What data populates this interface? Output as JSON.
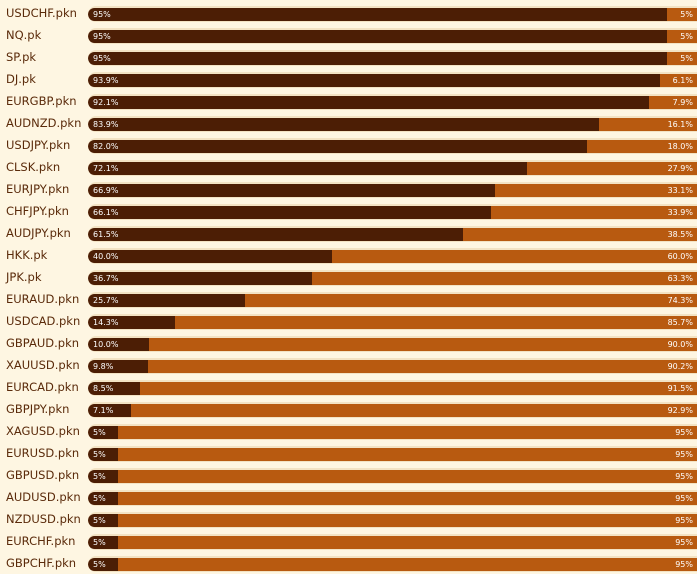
{
  "chart_data": {
    "type": "bar",
    "stacked": true,
    "orientation": "horizontal",
    "colors": {
      "long": "#4c1e05",
      "short": "#b85a10",
      "label": "#5a2a0a",
      "background": "#fef6e2"
    },
    "rows": [
      {
        "symbol": "USDCHF.pkn",
        "long": 95,
        "short": 5,
        "long_label": "95%",
        "short_label": "5%"
      },
      {
        "symbol": "NQ.pk",
        "long": 95,
        "short": 5,
        "long_label": "95%",
        "short_label": "5%"
      },
      {
        "symbol": "SP.pk",
        "long": 95,
        "short": 5,
        "long_label": "95%",
        "short_label": "5%"
      },
      {
        "symbol": "DJ.pk",
        "long": 93.9,
        "short": 6.1,
        "long_label": "93.9%",
        "short_label": "6.1%"
      },
      {
        "symbol": "EURGBP.pkn",
        "long": 92.1,
        "short": 7.9,
        "long_label": "92.1%",
        "short_label": "7.9%"
      },
      {
        "symbol": "AUDNZD.pkn",
        "long": 83.9,
        "short": 16.1,
        "long_label": "83.9%",
        "short_label": "16.1%"
      },
      {
        "symbol": "USDJPY.pkn",
        "long": 82.0,
        "short": 18.0,
        "long_label": "82.0%",
        "short_label": "18.0%"
      },
      {
        "symbol": "CLSK.pkn",
        "long": 72.1,
        "short": 27.9,
        "long_label": "72.1%",
        "short_label": "27.9%"
      },
      {
        "symbol": "EURJPY.pkn",
        "long": 66.9,
        "short": 33.1,
        "long_label": "66.9%",
        "short_label": "33.1%"
      },
      {
        "symbol": "CHFJPY.pkn",
        "long": 66.1,
        "short": 33.9,
        "long_label": "66.1%",
        "short_label": "33.9%"
      },
      {
        "symbol": "AUDJPY.pkn",
        "long": 61.5,
        "short": 38.5,
        "long_label": "61.5%",
        "short_label": "38.5%"
      },
      {
        "symbol": "HKK.pk",
        "long": 40.0,
        "short": 60.0,
        "long_label": "40.0%",
        "short_label": "60.0%"
      },
      {
        "symbol": "JPK.pk",
        "long": 36.7,
        "short": 63.3,
        "long_label": "36.7%",
        "short_label": "63.3%"
      },
      {
        "symbol": "EURAUD.pkn",
        "long": 25.7,
        "short": 74.3,
        "long_label": "25.7%",
        "short_label": "74.3%"
      },
      {
        "symbol": "USDCAD.pkn",
        "long": 14.3,
        "short": 85.7,
        "long_label": "14.3%",
        "short_label": "85.7%"
      },
      {
        "symbol": "GBPAUD.pkn",
        "long": 10.0,
        "short": 90.0,
        "long_label": "10.0%",
        "short_label": "90.0%"
      },
      {
        "symbol": "XAUUSD.pkn",
        "long": 9.8,
        "short": 90.2,
        "long_label": "9.8%",
        "short_label": "90.2%"
      },
      {
        "symbol": "EURCAD.pkn",
        "long": 8.5,
        "short": 91.5,
        "long_label": "8.5%",
        "short_label": "91.5%"
      },
      {
        "symbol": "GBPJPY.pkn",
        "long": 7.1,
        "short": 92.9,
        "long_label": "7.1%",
        "short_label": "92.9%"
      },
      {
        "symbol": "XAGUSD.pkn",
        "long": 5,
        "short": 95,
        "long_label": "5%",
        "short_label": "95%"
      },
      {
        "symbol": "EURUSD.pkn",
        "long": 5,
        "short": 95,
        "long_label": "5%",
        "short_label": "95%"
      },
      {
        "symbol": "GBPUSD.pkn",
        "long": 5,
        "short": 95,
        "long_label": "5%",
        "short_label": "95%"
      },
      {
        "symbol": "AUDUSD.pkn",
        "long": 5,
        "short": 95,
        "long_label": "5%",
        "short_label": "95%"
      },
      {
        "symbol": "NZDUSD.pkn",
        "long": 5,
        "short": 95,
        "long_label": "5%",
        "short_label": "95%"
      },
      {
        "symbol": "EURCHF.pkn",
        "long": 5,
        "short": 95,
        "long_label": "5%",
        "short_label": "95%"
      },
      {
        "symbol": "GBPCHF.pkn",
        "long": 5,
        "short": 95,
        "long_label": "5%",
        "short_label": "95%"
      }
    ]
  }
}
